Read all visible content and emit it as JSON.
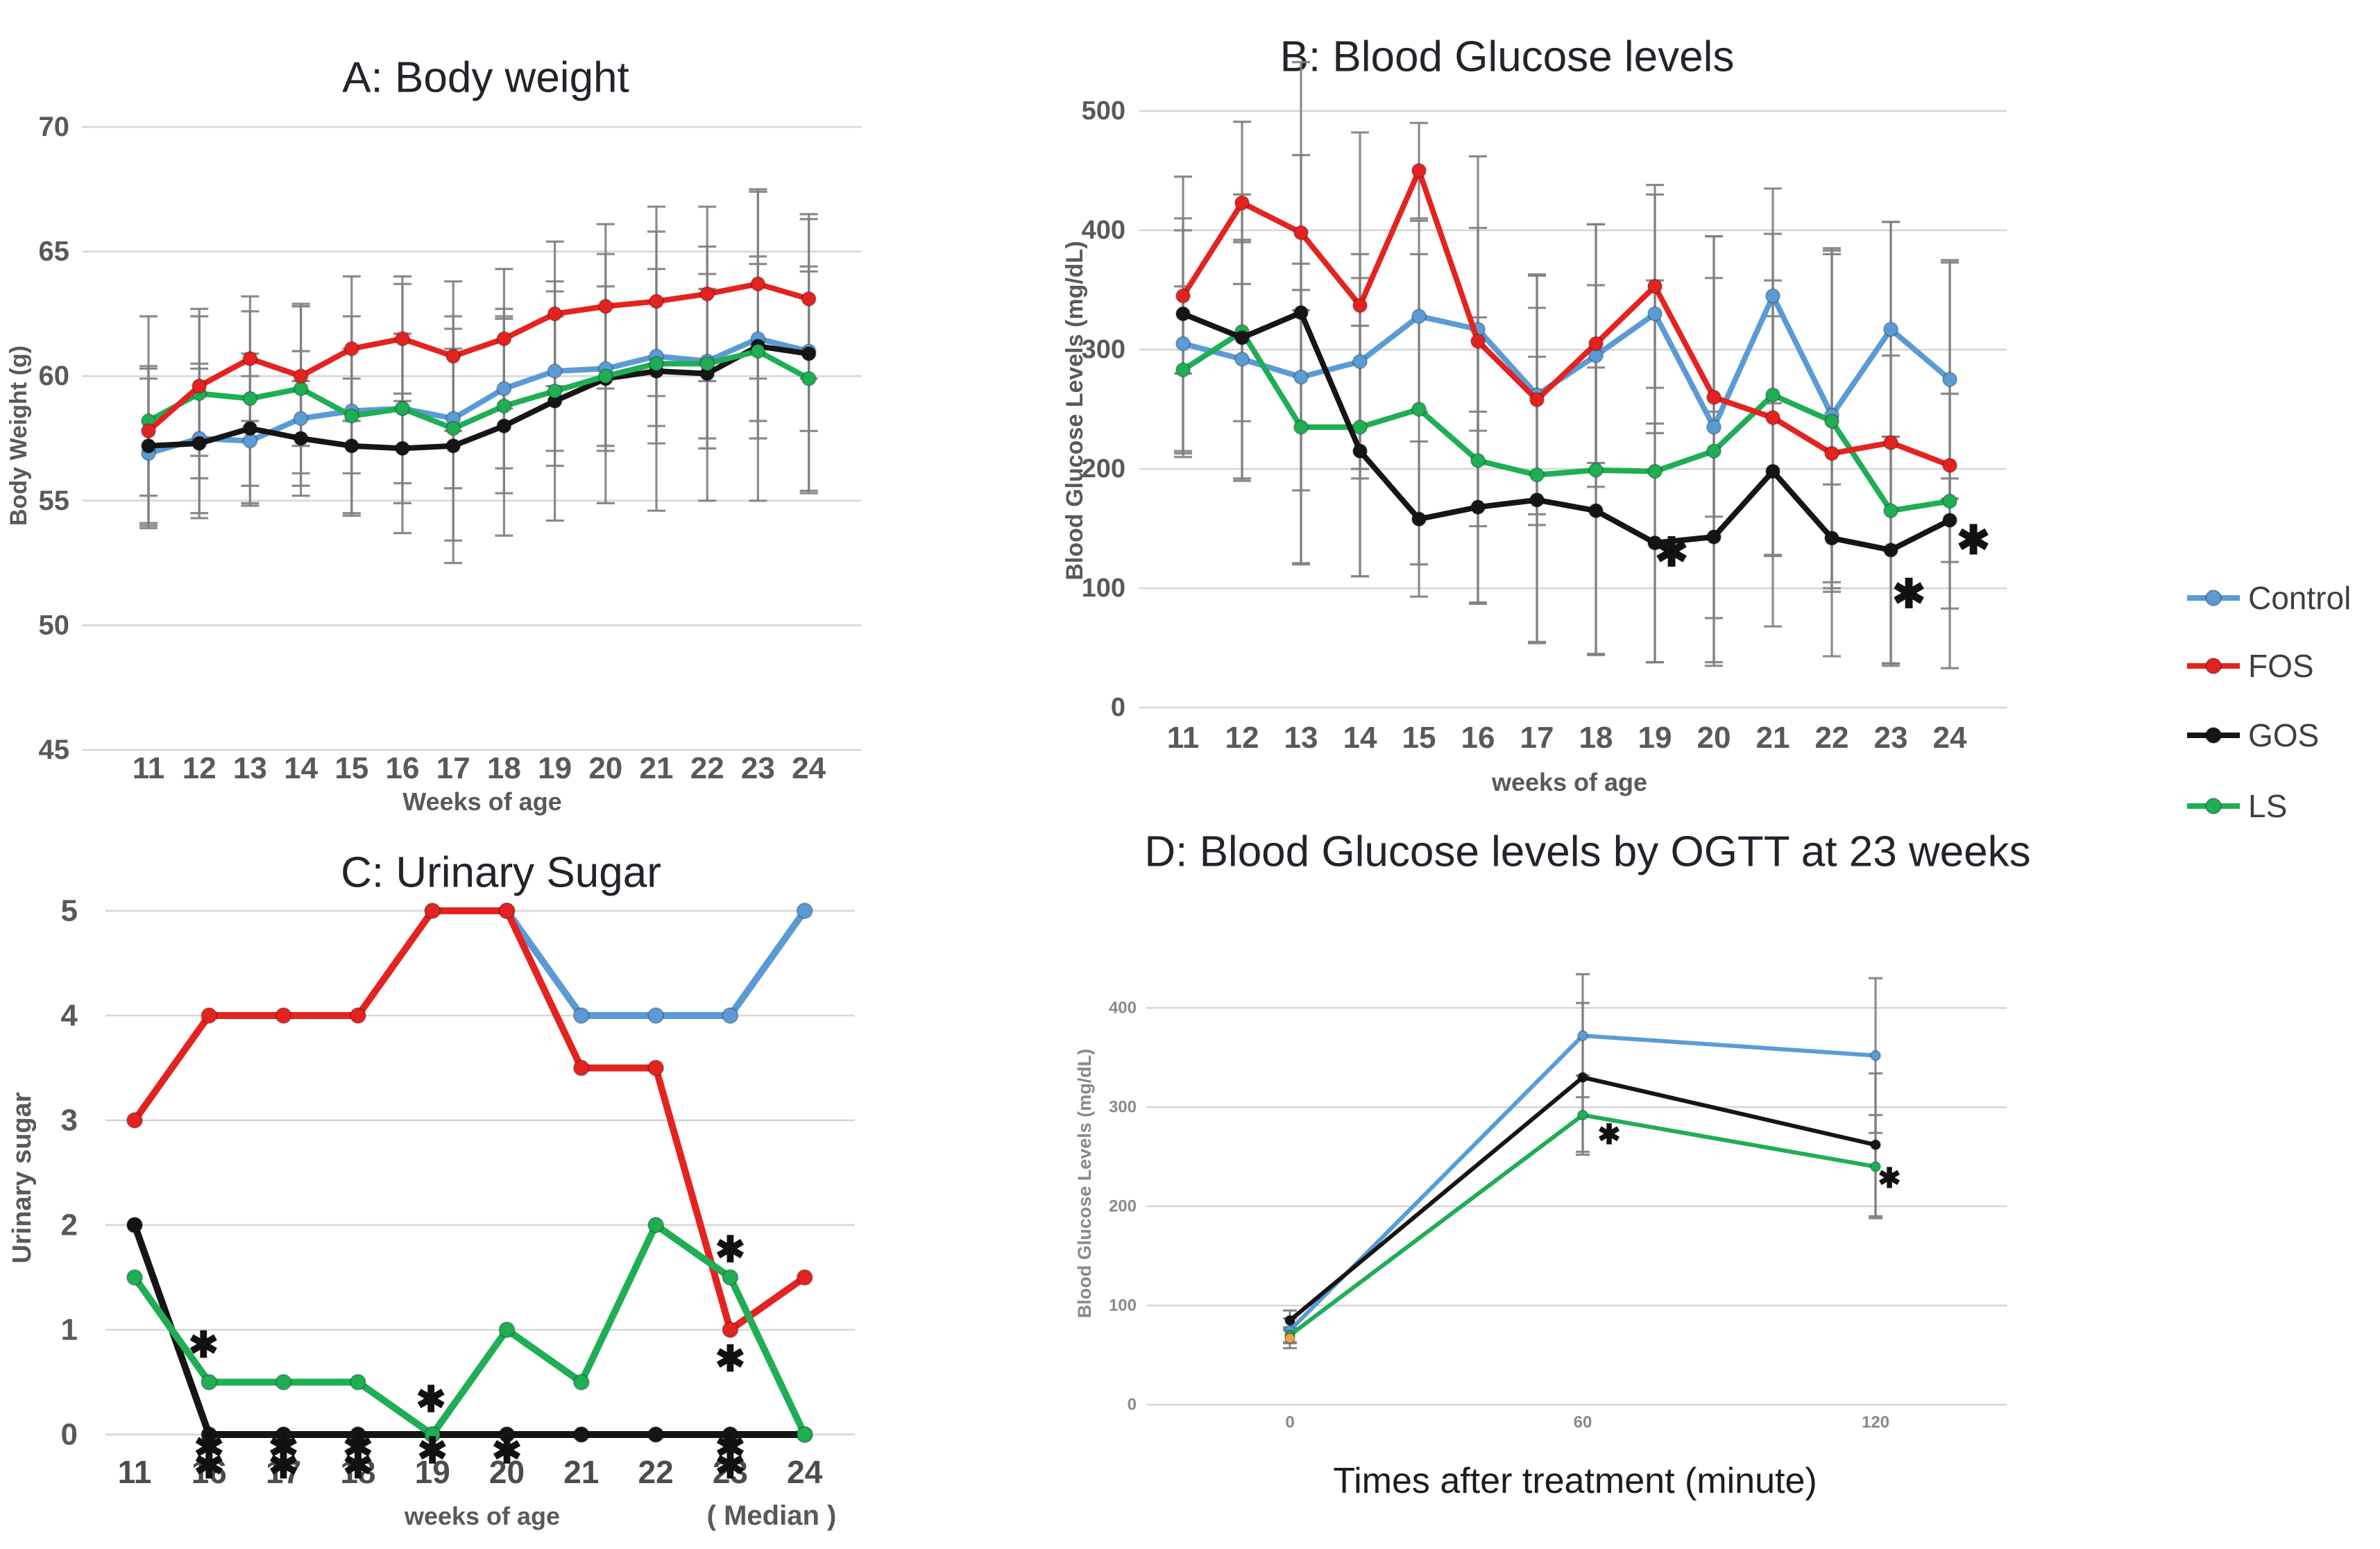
{
  "figure": {
    "background": "#ffffff",
    "asterisk_glyph": "✱"
  },
  "colors": {
    "control": "#5b9bd5",
    "fos": "#e42320",
    "gos": "#151515",
    "ls": "#1fae54",
    "fos_baseline_marker": "#f0a23c",
    "grid": "#d6d6d6",
    "error_bar": "#7f7f7f",
    "tick_text": "#595959",
    "title_text": "#23232b"
  },
  "legend": {
    "items": [
      {
        "label": "Control",
        "color": "#5b9bd5"
      },
      {
        "label": "FOS",
        "color": "#e42320"
      },
      {
        "label": "GOS",
        "color": "#151515"
      },
      {
        "label": "LS",
        "color": "#1fae54"
      }
    ]
  },
  "chart_data": [
    {
      "id": "A",
      "type": "line",
      "title": "A: Body weight",
      "xlabel": "Weeks of age",
      "ylabel": "Body Weight (g)",
      "categories": [
        "11",
        "12",
        "13",
        "14",
        "15",
        "16",
        "17",
        "18",
        "19",
        "20",
        "21",
        "22",
        "23",
        "24"
      ],
      "ylim": [
        45,
        70
      ],
      "yticks": [
        70,
        65,
        60,
        55,
        50,
        45
      ],
      "grid": true,
      "legend_position": "outside-right",
      "series": [
        {
          "name": "Control",
          "color": "#5b9bd5",
          "values": [
            56.9,
            57.5,
            57.4,
            58.3,
            58.6,
            58.7,
            58.3,
            59.5,
            60.2,
            60.3,
            60.8,
            60.6,
            61.5,
            61.0
          ],
          "err": [
            3.0,
            3.0,
            2.6,
            2.7,
            2.5,
            3.0,
            2.8,
            3.2,
            3.2,
            3.3,
            3.5,
            3.5,
            3.3,
            3.2
          ]
        },
        {
          "name": "GOS",
          "color": "#151515",
          "values": [
            57.2,
            57.3,
            57.9,
            57.5,
            57.2,
            57.1,
            57.2,
            58.0,
            59.0,
            59.9,
            60.2,
            60.1,
            61.2,
            60.9
          ],
          "err": [
            3.1,
            3.0,
            3.0,
            2.3,
            2.7,
            2.2,
            4.7,
            4.4,
            4.8,
            5.0,
            5.6,
            5.1,
            6.2,
            5.6
          ]
        },
        {
          "name": "LS",
          "color": "#1fae54",
          "values": [
            58.2,
            59.3,
            59.1,
            59.5,
            58.4,
            58.7,
            57.9,
            58.8,
            59.4,
            60.0,
            60.5,
            60.5,
            61.0,
            59.9
          ],
          "err": [
            4.2,
            3.4,
            3.5,
            3.4,
            4.0,
            5.0,
            4.5,
            3.5,
            3.0,
            2.8,
            2.5,
            3.0,
            3.5,
            4.5
          ]
        },
        {
          "name": "FOS",
          "color": "#e42320",
          "values": [
            57.8,
            59.6,
            60.7,
            60.0,
            61.1,
            61.5,
            60.8,
            61.5,
            62.5,
            62.8,
            63.0,
            63.3,
            63.7,
            63.1
          ],
          "err": [
            2.6,
            2.8,
            2.5,
            2.8,
            2.9,
            2.5,
            3.0,
            2.8,
            2.9,
            3.3,
            3.8,
            3.5,
            3.8,
            3.2
          ]
        }
      ],
      "asterisks": []
    },
    {
      "id": "B",
      "type": "line",
      "title": "B: Blood Glucose levels",
      "xlabel": "weeks of age",
      "ylabel": "Blood Glucose Levels  (mg/dL)",
      "categories": [
        "11",
        "12",
        "13",
        "14",
        "15",
        "16",
        "17",
        "18",
        "19",
        "20",
        "21",
        "22",
        "23",
        "24"
      ],
      "ylim": [
        0,
        500
      ],
      "yticks": [
        500,
        400,
        300,
        200,
        100,
        0
      ],
      "grid": true,
      "series": [
        {
          "name": "Control",
          "color": "#5b9bd5",
          "values": [
            305,
            292,
            277,
            290,
            328,
            317,
            262,
            295,
            330,
            235,
            345,
            245,
            317,
            275
          ],
          "err": [
            95,
            100,
            95,
            90,
            80,
            85,
            100,
            110,
            100,
            160,
            90,
            140,
            90,
            100
          ]
        },
        {
          "name": "LS",
          "color": "#1fae54",
          "values": [
            283,
            315,
            235,
            235,
            250,
            207,
            195,
            199,
            198,
            215,
            262,
            240,
            165,
            173
          ],
          "err": [
            70,
            75,
            115,
            125,
            130,
            120,
            140,
            155,
            160,
            180,
            135,
            140,
            130,
            90
          ]
        },
        {
          "name": "FOS",
          "color": "#e42320",
          "values": [
            345,
            423,
            398,
            337,
            450,
            307,
            258,
            305,
            353,
            260,
            243,
            213,
            222,
            203
          ],
          "err": [
            65,
            68,
            65,
            145,
            40,
            155,
            105,
            100,
            85,
            100,
            115,
            170,
            185,
            170
          ]
        },
        {
          "name": "GOS",
          "color": "#151515",
          "values": [
            330,
            310,
            331,
            215,
            158,
            168,
            174,
            165,
            138,
            143,
            198,
            142,
            132,
            157
          ],
          "err": [
            115,
            120,
            210,
            105,
            65,
            80,
            120,
            120,
            100,
            105,
            130,
            45,
            95,
            35
          ]
        }
      ],
      "asterisks": [
        {
          "i": 8,
          "y": 130,
          "dx": 24
        },
        {
          "i": 12,
          "y": 95,
          "dx": 26
        },
        {
          "i": 13,
          "y": 140,
          "dx": 34
        }
      ]
    },
    {
      "id": "C",
      "type": "line",
      "title": "C: Urinary Sugar",
      "xlabel": "weeks of age",
      "note": "( Median )",
      "ylabel": "Urinary sugar",
      "categories": [
        "11",
        "16",
        "17",
        "18",
        "19",
        "20",
        "21",
        "22",
        "23",
        "24"
      ],
      "ylim": [
        0,
        5
      ],
      "yticks": [
        5,
        4,
        3,
        2,
        1,
        0
      ],
      "grid": true,
      "series": [
        {
          "name": "Control",
          "color": "#5b9bd5",
          "values": [
            null,
            null,
            null,
            null,
            null,
            5,
            4,
            4,
            4,
            5
          ],
          "err": [
            null,
            null,
            null,
            null,
            null,
            null,
            null,
            null,
            null,
            null
          ]
        },
        {
          "name": "FOS",
          "color": "#e42320",
          "values": [
            3,
            4,
            4,
            4,
            5,
            5,
            3.5,
            3.5,
            1,
            1.5
          ],
          "err": [
            null,
            null,
            null,
            null,
            null,
            null,
            null,
            null,
            null,
            null
          ]
        },
        {
          "name": "GOS",
          "color": "#151515",
          "values": [
            2,
            0,
            0,
            0,
            0,
            0,
            0,
            0,
            0,
            0
          ],
          "err": [
            null,
            null,
            null,
            null,
            null,
            null,
            null,
            null,
            null,
            null
          ]
        },
        {
          "name": "LS",
          "color": "#1fae54",
          "values": [
            1.5,
            0.5,
            0.5,
            0.5,
            0,
            1,
            0.5,
            2,
            1.5,
            0
          ],
          "err": [
            null,
            null,
            null,
            null,
            null,
            null,
            null,
            null,
            null,
            null
          ]
        }
      ],
      "asterisks": [
        {
          "i": 1,
          "y": 0.85,
          "dx": -8
        },
        {
          "i": 4,
          "y": 0.33,
          "dx": -2
        },
        {
          "i": 8,
          "y": 1.76,
          "dx": 0
        },
        {
          "i": 8,
          "y": 0.72,
          "dx": 0
        },
        {
          "i": 1,
          "y": -0.13
        },
        {
          "i": 1,
          "y": -0.3
        },
        {
          "i": 2,
          "y": -0.13
        },
        {
          "i": 2,
          "y": -0.3
        },
        {
          "i": 3,
          "y": -0.13
        },
        {
          "i": 3,
          "y": -0.3
        },
        {
          "i": 4,
          "y": -0.16
        },
        {
          "i": 5,
          "y": -0.16
        },
        {
          "i": 8,
          "y": -0.13
        },
        {
          "i": 8,
          "y": -0.3
        }
      ]
    },
    {
      "id": "D",
      "type": "line",
      "title": "D: Blood Glucose levels by OGTT at 23 weeks",
      "xlabel": "Times after treatment (minute)",
      "ylabel": "Blood Glucose Levels  (mg/dL)",
      "categories": [
        "0",
        "60",
        "120"
      ],
      "ylim": [
        0,
        400
      ],
      "yticks": [
        400,
        300,
        200,
        100,
        0
      ],
      "grid": true,
      "series": [
        {
          "name": "Control",
          "color": "#5b9bd5",
          "values": [
            75,
            372,
            352
          ],
          "err": [
            12,
            62,
            78
          ]
        },
        {
          "name": "GOS",
          "color": "#151515",
          "values": [
            85,
            330,
            262
          ],
          "err": [
            10,
            75,
            72
          ]
        },
        {
          "name": "LS",
          "color": "#1fae54",
          "values": [
            70,
            292,
            240
          ],
          "err": [
            8,
            40,
            52
          ]
        },
        {
          "name": "FOS",
          "color": "#f0a23c",
          "values": [
            67,
            null,
            null
          ],
          "err": [
            10,
            null,
            null
          ]
        }
      ],
      "asterisks": [
        {
          "i": 1,
          "y": 272,
          "dx": 38
        },
        {
          "i": 2,
          "y": 228,
          "dx": 20
        }
      ]
    }
  ]
}
